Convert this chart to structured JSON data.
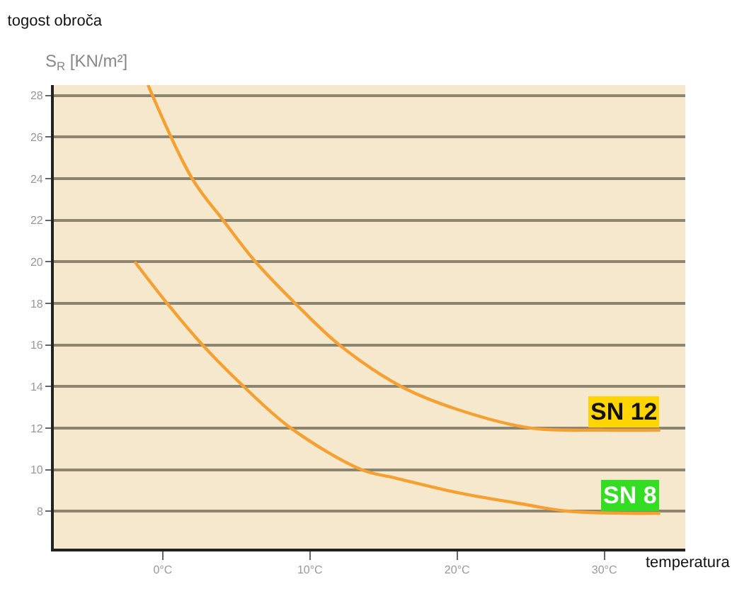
{
  "chart_data": {
    "type": "line",
    "title": "togost obroča",
    "ylabel": "S$_{R}$ [KN/m²]",
    "xlabel": "temperatura",
    "series": [
      {
        "name": "SN 12",
        "color": "#f5a030",
        "x": [
          -1.0,
          2.0,
          4.1,
          6.3,
          9.0,
          12.0,
          16.2,
          20.0,
          25.0,
          30.0,
          33.8
        ],
        "values": [
          28.5,
          24,
          22,
          20,
          18,
          16,
          14,
          12.9,
          12,
          11.9,
          11.9
        ]
      },
      {
        "name": "SN 8",
        "color": "#f5a030",
        "x": [
          -1.9,
          0.3,
          2.7,
          5.5,
          8.7,
          13.5,
          15.8,
          20.0,
          24.0,
          27.6,
          33.8
        ],
        "values": [
          20,
          18,
          16,
          14,
          12,
          10,
          9.6,
          8.9,
          8.4,
          8.0,
          7.9
        ]
      }
    ],
    "xlim": [
      -7.4,
      35.5
    ],
    "ylim": [
      6.2,
      28.5
    ],
    "xticks": [
      {
        "value": 0,
        "label": "0°C"
      },
      {
        "value": 10,
        "label": "10°C"
      },
      {
        "value": 20,
        "label": "20°C"
      },
      {
        "value": 30,
        "label": "30°C"
      }
    ],
    "yticks": [
      8,
      10,
      12,
      14,
      16,
      18,
      20,
      22,
      24,
      26,
      28
    ],
    "grid": "y",
    "marker": "none",
    "line_style": "solid",
    "legend": false
  }
}
